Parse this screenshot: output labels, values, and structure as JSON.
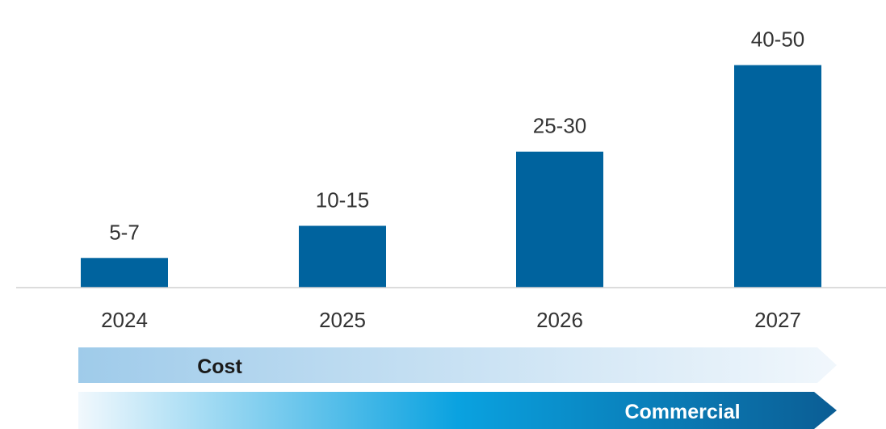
{
  "chart_data": {
    "type": "bar",
    "categories": [
      "2024",
      "2025",
      "2026",
      "2027"
    ],
    "values": [
      6,
      12.5,
      27.5,
      45
    ],
    "data_labels": [
      "5-7",
      "10-15",
      "25-30",
      "40-50"
    ],
    "title": "",
    "xlabel": "",
    "ylabel": "",
    "ylim": [
      0,
      50
    ],
    "grid": false,
    "legend": "none",
    "colors": {
      "bar": "#00639e",
      "baseline": "#d0d0d0",
      "text": "#333333"
    }
  },
  "arrows": [
    {
      "label": "Cost",
      "gradient": [
        "#9fcbea",
        "#f1f7fc"
      ],
      "text_color": "#1a1a1a"
    },
    {
      "label": "Commercial",
      "gradient": [
        "#f1f8fd",
        "#0aa2e0",
        "#0b5d94"
      ],
      "text_color": "#ffffff"
    }
  ]
}
